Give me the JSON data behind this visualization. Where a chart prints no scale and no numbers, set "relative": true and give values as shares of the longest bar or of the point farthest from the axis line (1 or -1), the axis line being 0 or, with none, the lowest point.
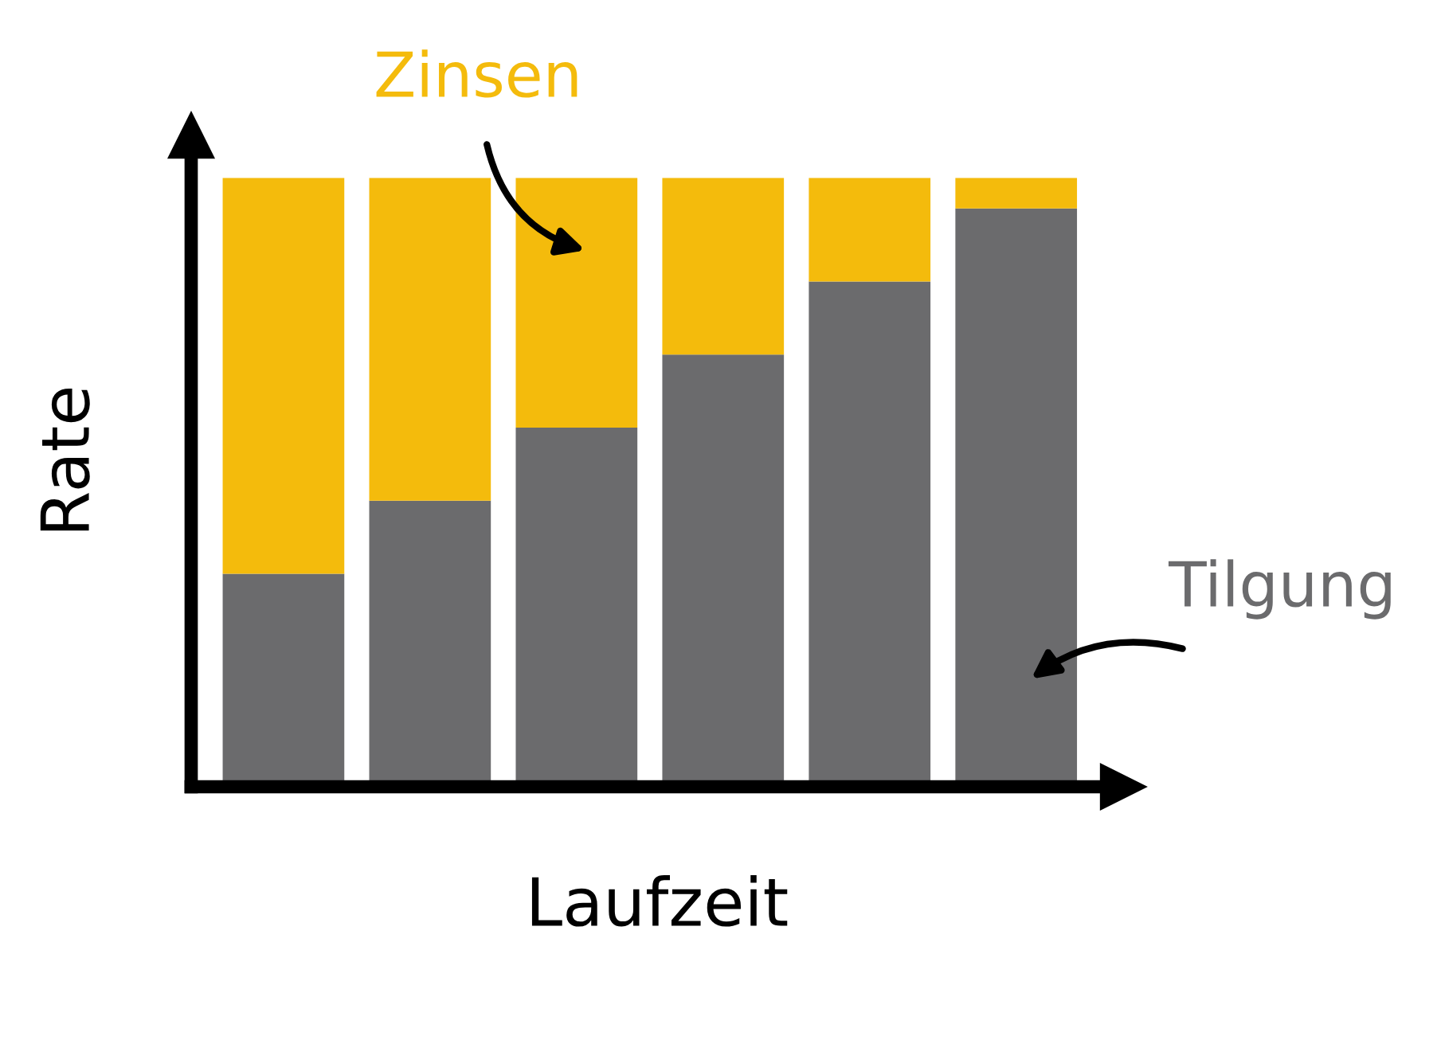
{
  "chart_data": {
    "type": "bar",
    "stacked": true,
    "relative": true,
    "xlabel": "Laufzeit",
    "ylabel": "Rate",
    "legend": false,
    "grid": false,
    "tick_labels": false,
    "categories": [
      null,
      null,
      null,
      null,
      null,
      null
    ],
    "series": [
      {
        "name": "Tilgung",
        "color": "#6b6b6d",
        "values": [
          0.35,
          0.47,
          0.59,
          0.71,
          0.83,
          0.95
        ]
      },
      {
        "name": "Zinsen",
        "color": "#f4bb0c",
        "values": [
          0.65,
          0.53,
          0.41,
          0.29,
          0.17,
          0.05
        ]
      }
    ]
  }
}
